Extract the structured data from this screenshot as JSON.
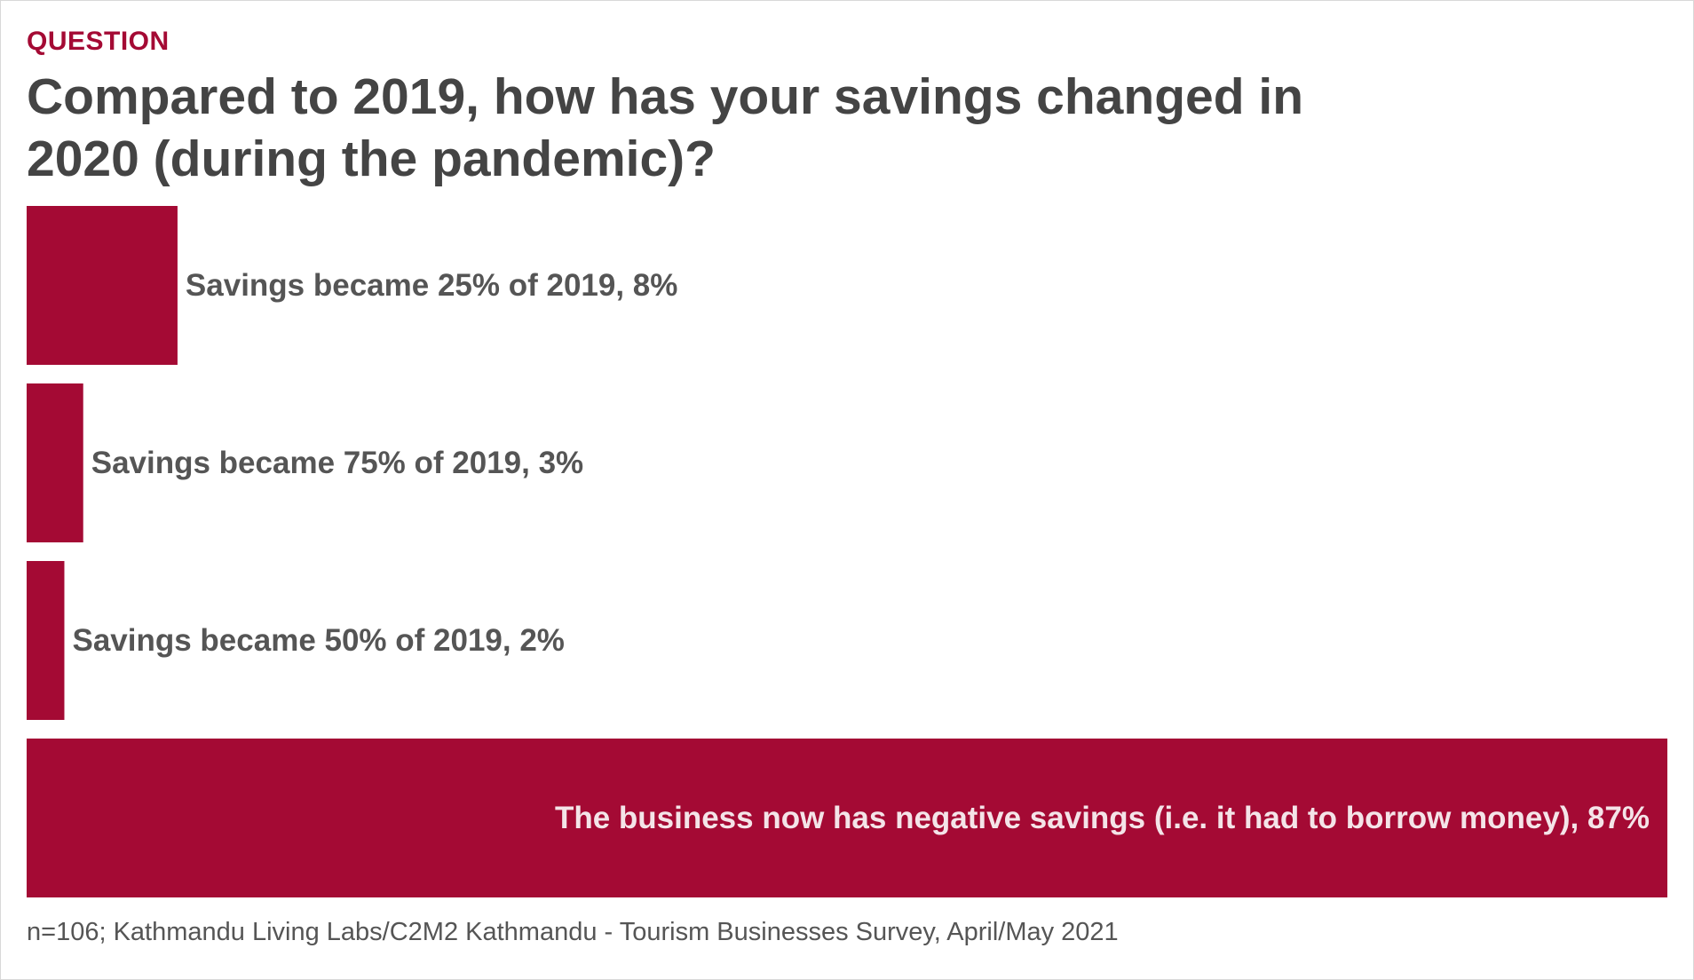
{
  "header": {
    "kicker": "QUESTION",
    "title": "Compared to 2019, how has your savings changed in 2020 (during the pandemic)?"
  },
  "chart_data": {
    "type": "bar",
    "orientation": "horizontal",
    "categories": [
      "Savings became 25% of 2019",
      "Savings became 75% of 2019",
      "Savings became 50% of 2019",
      "The business now has negative savings (i.e. it had to borrow money)"
    ],
    "values": [
      8,
      3,
      2,
      87
    ],
    "labels": [
      "Savings became 25% of 2019, 8%",
      "Savings became 75% of 2019, 3%",
      "Savings became 50% of 2019, 2%",
      "The business now has negative savings (i.e. it had to borrow money), 87%"
    ],
    "unit": "%",
    "xlim": [
      0,
      87
    ],
    "grid": false,
    "legend": "none",
    "colors": {
      "bar": "#a40a34",
      "label_outside": "#555555",
      "label_inside": "#f4e4e8"
    }
  },
  "footer": {
    "source": "n=106; Kathmandu Living Labs/C2M2 Kathmandu - Tourism Businesses Survey, April/May 2021"
  }
}
